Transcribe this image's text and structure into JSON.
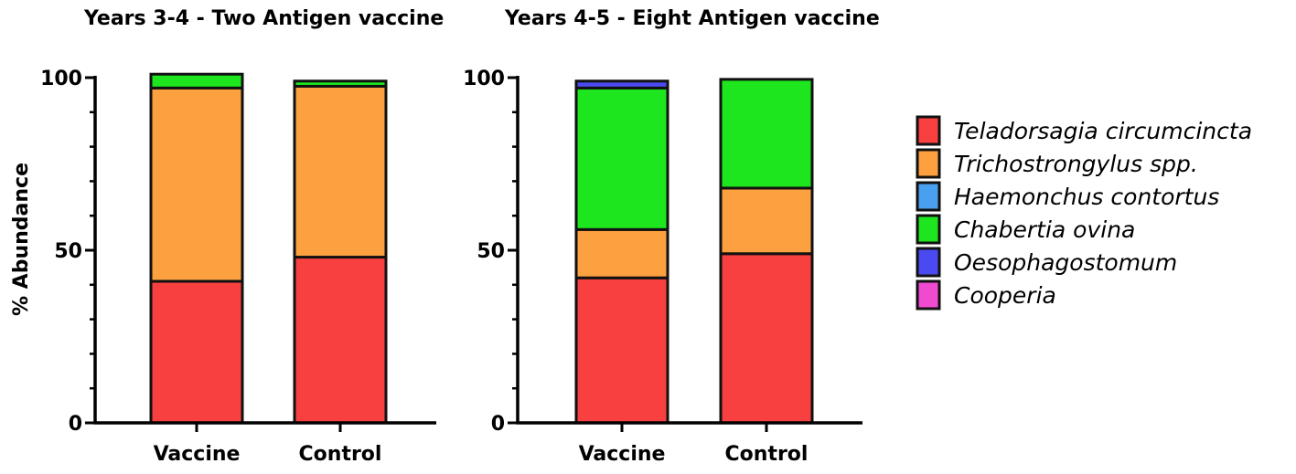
{
  "chart_data": [
    {
      "type": "bar",
      "stacked": true,
      "title": "Years 3-4 - Two Antigen vaccine",
      "ylabel": "% Abundance",
      "ylim": [
        0,
        100
      ],
      "yticks": [
        "0",
        "50",
        "100"
      ],
      "categories": [
        "Vaccine",
        "Control"
      ],
      "series": [
        {
          "name": "Teladorsagia circumcincta",
          "color": "#f94040",
          "values": [
            41,
            48
          ]
        },
        {
          "name": "Trichostrongylus spp.",
          "color": "#fca040",
          "values": [
            56,
            49.5
          ]
        },
        {
          "name": "Haemonchus contortus",
          "color": "#4aa0f0",
          "values": [
            0,
            0
          ]
        },
        {
          "name": "Chabertia ovina",
          "color": "#1ee61e",
          "values": [
            4,
            1.5
          ]
        },
        {
          "name": "Oesophagostomum",
          "color": "#4a4af0",
          "values": [
            0,
            0
          ]
        },
        {
          "name": "Cooperia",
          "color": "#f04ad0",
          "values": [
            0,
            0
          ]
        }
      ]
    },
    {
      "type": "bar",
      "stacked": true,
      "title": "Years 4-5 - Eight Antigen vaccine",
      "ylabel": "",
      "ylim": [
        0,
        100
      ],
      "yticks": [
        "0",
        "50",
        "100"
      ],
      "categories": [
        "Vaccine",
        "Control"
      ],
      "series": [
        {
          "name": "Teladorsagia circumcincta",
          "color": "#f94040",
          "values": [
            42,
            49
          ]
        },
        {
          "name": "Trichostrongylus spp.",
          "color": "#fca040",
          "values": [
            14,
            19
          ]
        },
        {
          "name": "Haemonchus contortus",
          "color": "#4aa0f0",
          "values": [
            0,
            0
          ]
        },
        {
          "name": "Chabertia ovina",
          "color": "#1ee61e",
          "values": [
            41,
            31.5
          ]
        },
        {
          "name": "Oesophagostomum",
          "color": "#4a4af0",
          "values": [
            2,
            0
          ]
        },
        {
          "name": "Cooperia",
          "color": "#f04ad0",
          "values": [
            0,
            0
          ]
        }
      ]
    }
  ],
  "legend": {
    "placement": "right",
    "items": [
      {
        "label": "Teladorsagia circumcincta",
        "color": "#f94040"
      },
      {
        "label": "Trichostrongylus spp.",
        "color": "#fca040"
      },
      {
        "label": "Haemonchus contortus",
        "color": "#4aa0f0"
      },
      {
        "label": "Chabertia ovina",
        "color": "#1ee61e"
      },
      {
        "label": "Oesophagostomum",
        "color": "#4a4af0"
      },
      {
        "label": "Cooperia",
        "color": "#f04ad0"
      }
    ]
  }
}
